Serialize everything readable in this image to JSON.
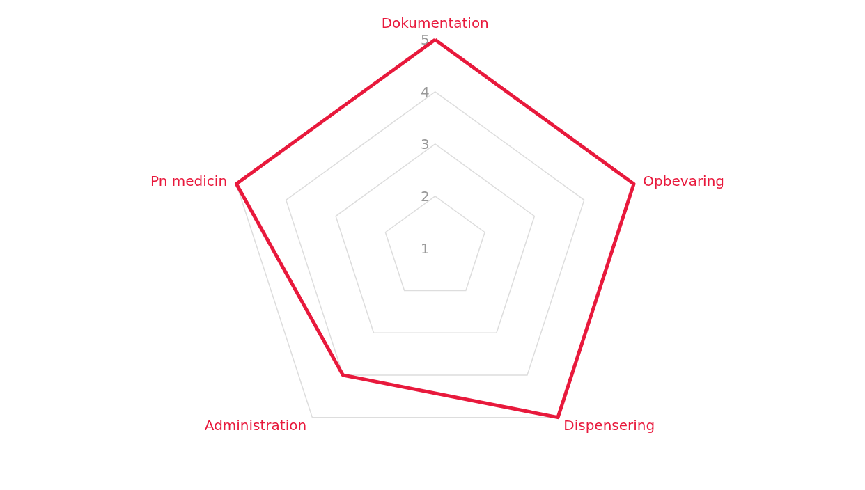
{
  "chart_data": {
    "type": "radar",
    "categories": [
      "Dokumentation",
      "Opbevaring",
      "Dispensering",
      "Administration",
      "Pn medicin"
    ],
    "series": [
      {
        "color": "#e8193c",
        "values": [
          5,
          5,
          5,
          4,
          5
        ]
      }
    ],
    "ylim": [
      1,
      5
    ],
    "yticks": [
      1,
      2,
      3,
      4,
      5
    ],
    "grid": true,
    "marker": "none",
    "line_style": "solid"
  }
}
